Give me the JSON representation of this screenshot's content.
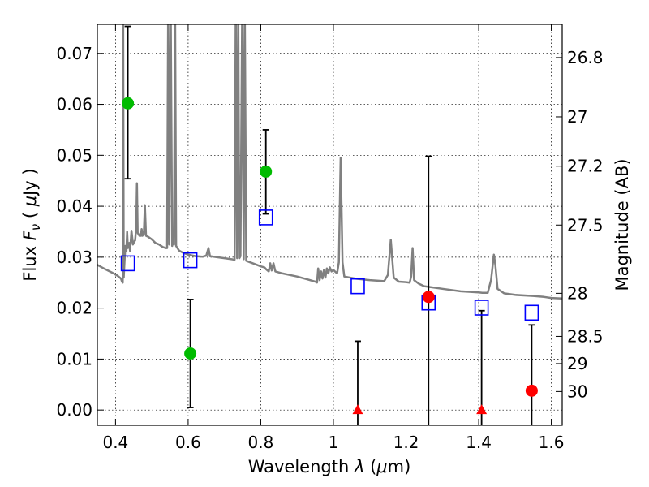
{
  "chart_data": {
    "type": "scatter",
    "xlabel": "Wavelength  λ (μm)",
    "ylabel": "Flux  F_ν  ( μJy )",
    "y2label": "Magnitude (AB)",
    "xlim": [
      0.35,
      1.63
    ],
    "ylim": [
      -0.003,
      0.0757
    ],
    "grid": true,
    "xticks": [
      {
        "value": 0.4,
        "label": "0.4"
      },
      {
        "value": 0.6,
        "label": "0.6"
      },
      {
        "value": 0.8,
        "label": "0.8"
      },
      {
        "value": 1.0,
        "label": "1"
      },
      {
        "value": 1.2,
        "label": "1.2"
      },
      {
        "value": 1.4,
        "label": "1.4"
      },
      {
        "value": 1.6,
        "label": "1.6"
      }
    ],
    "yticks": [
      {
        "value": 0.0,
        "label": "0.00"
      },
      {
        "value": 0.01,
        "label": "0.01"
      },
      {
        "value": 0.02,
        "label": "0.02"
      },
      {
        "value": 0.03,
        "label": "0.03"
      },
      {
        "value": 0.04,
        "label": "0.04"
      },
      {
        "value": 0.05,
        "label": "0.05"
      },
      {
        "value": 0.06,
        "label": "0.06"
      },
      {
        "value": 0.07,
        "label": "0.07"
      }
    ],
    "y2ticks": [
      {
        "value": 26.8,
        "label": "26.8"
      },
      {
        "value": 27.0,
        "label": "27"
      },
      {
        "value": 27.2,
        "label": "27.2"
      },
      {
        "value": 27.5,
        "label": "27.5"
      },
      {
        "value": 28.0,
        "label": "28"
      },
      {
        "value": 28.5,
        "label": "28.5"
      },
      {
        "value": 29.0,
        "label": "29"
      },
      {
        "value": 30.0,
        "label": "30"
      }
    ],
    "model_spectrum": {
      "color": "#808080",
      "points": [
        [
          0.35,
          0.0285
        ],
        [
          0.37,
          0.0277
        ],
        [
          0.39,
          0.027
        ],
        [
          0.405,
          0.0264
        ],
        [
          0.415,
          0.0258
        ],
        [
          0.418,
          0.0252
        ],
        [
          0.42,
          0.025
        ],
        [
          0.421,
          0.08
        ],
        [
          0.4225,
          0.026
        ],
        [
          0.427,
          0.0322
        ],
        [
          0.43,
          0.0312
        ],
        [
          0.432,
          0.035
        ],
        [
          0.434,
          0.0318
        ],
        [
          0.438,
          0.0328
        ],
        [
          0.44,
          0.0312
        ],
        [
          0.444,
          0.0352
        ],
        [
          0.448,
          0.0325
        ],
        [
          0.451,
          0.033
        ],
        [
          0.454,
          0.0333
        ],
        [
          0.457,
          0.0358
        ],
        [
          0.459,
          0.0445
        ],
        [
          0.461,
          0.0348
        ],
        [
          0.466,
          0.0342
        ],
        [
          0.47,
          0.0342
        ],
        [
          0.472,
          0.0355
        ],
        [
          0.474,
          0.0342
        ],
        [
          0.478,
          0.0345
        ],
        [
          0.481,
          0.0402
        ],
        [
          0.484,
          0.0342
        ],
        [
          0.49,
          0.034
        ],
        [
          0.5,
          0.0335
        ],
        [
          0.51,
          0.0328
        ],
        [
          0.52,
          0.0325
        ],
        [
          0.53,
          0.032
        ],
        [
          0.538,
          0.0318
        ],
        [
          0.542,
          0.0318
        ],
        [
          0.545,
          0.08
        ],
        [
          0.548,
          0.0325
        ],
        [
          0.552,
          0.08
        ],
        [
          0.556,
          0.0322
        ],
        [
          0.558,
          0.0345
        ],
        [
          0.561,
          0.0325
        ],
        [
          0.564,
          0.08
        ],
        [
          0.567,
          0.0322
        ],
        [
          0.575,
          0.0313
        ],
        [
          0.585,
          0.0309
        ],
        [
          0.6,
          0.0305
        ],
        [
          0.62,
          0.0302
        ],
        [
          0.64,
          0.0301
        ],
        [
          0.65,
          0.0303
        ],
        [
          0.656,
          0.0318
        ],
        [
          0.66,
          0.0302
        ],
        [
          0.68,
          0.03
        ],
        [
          0.7,
          0.0298
        ],
        [
          0.72,
          0.0296
        ],
        [
          0.728,
          0.0295
        ],
        [
          0.731,
          0.08
        ],
        [
          0.735,
          0.0298
        ],
        [
          0.738,
          0.08
        ],
        [
          0.741,
          0.0298
        ],
        [
          0.744,
          0.0302
        ],
        [
          0.749,
          0.08
        ],
        [
          0.753,
          0.0296
        ],
        [
          0.756,
          0.08
        ],
        [
          0.76,
          0.0293
        ],
        [
          0.77,
          0.029
        ],
        [
          0.785,
          0.0286
        ],
        [
          0.8,
          0.0282
        ],
        [
          0.81,
          0.028
        ],
        [
          0.815,
          0.0276
        ],
        [
          0.822,
          0.0272
        ],
        [
          0.826,
          0.0288
        ],
        [
          0.83,
          0.0274
        ],
        [
          0.835,
          0.0288
        ],
        [
          0.84,
          0.0272
        ],
        [
          0.86,
          0.0268
        ],
        [
          0.88,
          0.0265
        ],
        [
          0.9,
          0.0262
        ],
        [
          0.92,
          0.0258
        ],
        [
          0.94,
          0.0254
        ],
        [
          0.95,
          0.0252
        ],
        [
          0.955,
          0.025
        ],
        [
          0.958,
          0.0278
        ],
        [
          0.962,
          0.0255
        ],
        [
          0.966,
          0.0272
        ],
        [
          0.97,
          0.0258
        ],
        [
          0.974,
          0.0275
        ],
        [
          0.978,
          0.026
        ],
        [
          0.982,
          0.0278
        ],
        [
          0.986,
          0.0268
        ],
        [
          0.99,
          0.028
        ],
        [
          0.995,
          0.0272
        ],
        [
          1.0,
          0.0275
        ],
        [
          1.01,
          0.0268
        ],
        [
          1.015,
          0.029
        ],
        [
          1.02,
          0.0495
        ],
        [
          1.025,
          0.029
        ],
        [
          1.03,
          0.0262
        ],
        [
          1.06,
          0.0258
        ],
        [
          1.1,
          0.0255
        ],
        [
          1.14,
          0.0253
        ],
        [
          1.15,
          0.0265
        ],
        [
          1.158,
          0.0334
        ],
        [
          1.166,
          0.026
        ],
        [
          1.18,
          0.0252
        ],
        [
          1.2,
          0.0251
        ],
        [
          1.21,
          0.025
        ],
        [
          1.214,
          0.0262
        ],
        [
          1.218,
          0.0318
        ],
        [
          1.222,
          0.0255
        ],
        [
          1.235,
          0.0248
        ],
        [
          1.25,
          0.0243
        ],
        [
          1.3,
          0.0238
        ],
        [
          1.35,
          0.0233
        ],
        [
          1.4,
          0.0231
        ],
        [
          1.41,
          0.023
        ],
        [
          1.425,
          0.023
        ],
        [
          1.434,
          0.0255
        ],
        [
          1.442,
          0.0305
        ],
        [
          1.446,
          0.0285
        ],
        [
          1.452,
          0.0238
        ],
        [
          1.47,
          0.0229
        ],
        [
          1.5,
          0.0226
        ],
        [
          1.55,
          0.0224
        ],
        [
          1.58,
          0.0222
        ],
        [
          1.6,
          0.022
        ],
        [
          1.63,
          0.0219
        ]
      ]
    },
    "series": [
      {
        "marker": "square",
        "color": "#0000ff",
        "points": [
          {
            "x": 0.434,
            "y": 0.0288
          },
          {
            "x": 0.606,
            "y": 0.0294
          },
          {
            "x": 0.814,
            "y": 0.0378
          },
          {
            "x": 1.067,
            "y": 0.0243
          },
          {
            "x": 1.262,
            "y": 0.0211
          },
          {
            "x": 1.408,
            "y": 0.0201
          },
          {
            "x": 1.546,
            "y": 0.0191
          }
        ]
      },
      {
        "marker": "circle",
        "color": "#00bb00",
        "points": [
          {
            "x": 0.434,
            "y": 0.0602,
            "err_lo": 0.0454,
            "err_hi": 0.0753
          },
          {
            "x": 0.606,
            "y": 0.0111,
            "err_lo": 0.0005,
            "err_hi": 0.0217
          },
          {
            "x": 0.814,
            "y": 0.0468,
            "err_lo": 0.0385,
            "err_hi": 0.055
          }
        ]
      },
      {
        "marker": "circle",
        "color": "#ff0000",
        "points": [
          {
            "x": 1.262,
            "y": 0.0222,
            "err_lo": -0.005,
            "err_hi": 0.0498
          },
          {
            "x": 1.546,
            "y": 0.0038,
            "err_lo": -0.005,
            "err_hi": 0.0167
          }
        ]
      },
      {
        "marker": "triangle",
        "color": "#ff0000",
        "points": [
          {
            "x": 1.067,
            "y": 0.0,
            "err_lo": -0.005,
            "err_hi": 0.0135
          },
          {
            "x": 1.408,
            "y": 0.0,
            "err_lo": -0.005,
            "err_hi": 0.0195
          }
        ]
      }
    ]
  }
}
